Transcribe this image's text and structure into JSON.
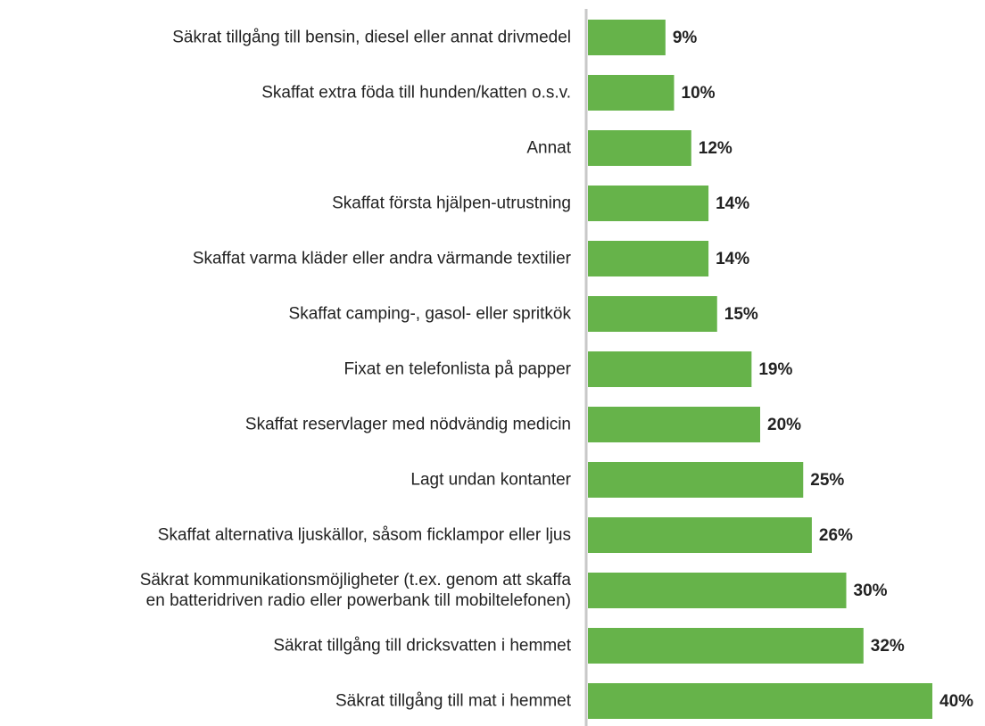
{
  "chart_data": {
    "type": "bar",
    "orientation": "horizontal",
    "color": "#66b34a",
    "categories": [
      "Säkrat tillgång till bensin, diesel eller annat drivmedel",
      "Skaffat extra föda till hunden/katten o.s.v.",
      "Annat",
      "Skaffat första hjälpen-utrustning",
      "Skaffat varma kläder eller andra värmande textilier",
      "Skaffat camping-, gasol- eller spritkök",
      "Fixat en telefonlista på papper",
      "Skaffat reservlager med nödvändig medicin",
      "Lagt undan kontanter",
      "Skaffat alternativa ljuskällor, såsom ficklampor eller ljus",
      "Säkrat kommunikationsmöjligheter (t.ex. genom att skaffa\nen batteridriven radio eller powerbank till mobiltelefonen)",
      "Säkrat tillgång till dricksvatten i hemmet",
      "Säkrat tillgång till mat i hemmet"
    ],
    "values": [
      9,
      10,
      12,
      14,
      14,
      15,
      19,
      20,
      25,
      26,
      30,
      32,
      40
    ],
    "value_labels": [
      "9%",
      "10%",
      "12%",
      "14%",
      "14%",
      "15%",
      "19%",
      "20%",
      "25%",
      "26%",
      "30%",
      "32%",
      "40%"
    ]
  }
}
